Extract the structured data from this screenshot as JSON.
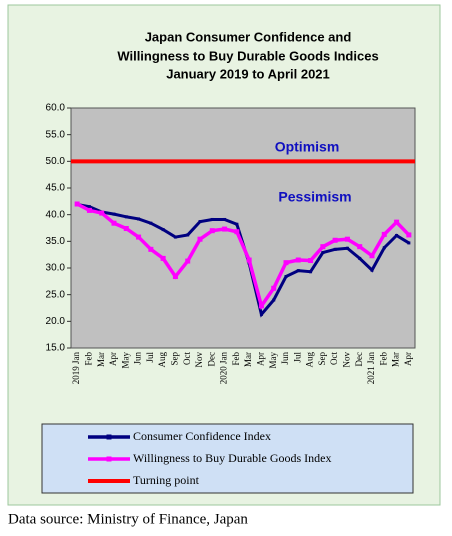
{
  "chart_data": {
    "type": "line",
    "title": [
      "Japan Consumer Confidence and",
      "Willingness to Buy Durable Goods Indices",
      "January 2019 to April 2021"
    ],
    "categories": [
      "2019 Jan",
      "Feb",
      "Mar",
      "Apr",
      "May",
      "Jun",
      "Jul",
      "Aug",
      "Sep",
      "Oct",
      "Nov",
      "Dec",
      "2020 Jan",
      "Feb",
      "Mar",
      "Apr",
      "May",
      "Jun",
      "Jul",
      "Aug",
      "Sep",
      "Oct",
      "Nov",
      "Dec",
      "2021 Jan",
      "Feb",
      "Mar",
      "Apr"
    ],
    "series": [
      {
        "name": "Consumer Confidence Index",
        "color": "#000080",
        "values": [
          41.9,
          41.5,
          40.5,
          40.1,
          39.6,
          39.2,
          38.4,
          37.2,
          35.8,
          36.2,
          38.7,
          39.1,
          39.1,
          38.2,
          30.9,
          21.3,
          24.0,
          28.4,
          29.5,
          29.3,
          32.9,
          33.5,
          33.7,
          31.8,
          29.6,
          33.8,
          36.1,
          34.7
        ]
      },
      {
        "name": "Willingness to Buy Durable Goods Index",
        "color": "#ff00ff",
        "values": [
          42.0,
          40.8,
          40.3,
          38.4,
          37.4,
          35.8,
          33.5,
          31.8,
          28.4,
          31.3,
          35.4,
          37.0,
          37.3,
          36.8,
          31.5,
          22.9,
          26.2,
          31.0,
          31.5,
          31.4,
          34.0,
          35.2,
          35.4,
          34.0,
          32.3,
          36.3,
          38.6,
          36.2
        ]
      },
      {
        "name": "Turning point",
        "color": "#ff0000",
        "values": [
          50,
          50,
          50,
          50,
          50,
          50,
          50,
          50,
          50,
          50,
          50,
          50,
          50,
          50,
          50,
          50,
          50,
          50,
          50,
          50,
          50,
          50,
          50,
          50,
          50,
          50,
          50,
          50
        ]
      }
    ],
    "ylim": [
      15,
      60
    ],
    "yticks": [
      {
        "value": 15,
        "label": "15.0"
      },
      {
        "value": 20,
        "label": "20.0"
      },
      {
        "value": 25,
        "label": "25.0"
      },
      {
        "value": 30,
        "label": "30.0"
      },
      {
        "value": 35,
        "label": "35.0"
      },
      {
        "value": 40,
        "label": "40.0"
      },
      {
        "value": 45,
        "label": "45.0"
      },
      {
        "value": 50,
        "label": "50.0"
      },
      {
        "value": 55,
        "label": "55.0"
      },
      {
        "value": 60,
        "label": "60.0"
      }
    ],
    "annotations": [
      "Optimism",
      "Pessimism"
    ],
    "source": "Data source: Ministry of Finance, Japan"
  }
}
